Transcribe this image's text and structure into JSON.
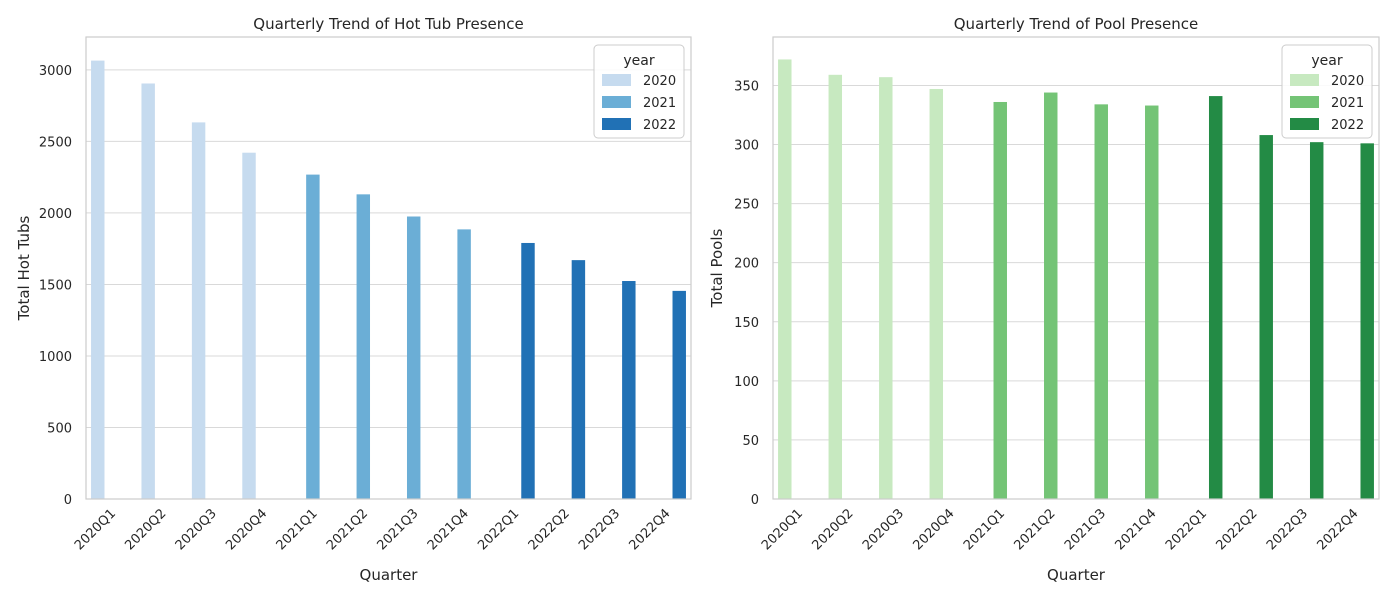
{
  "chart_data": [
    {
      "type": "bar",
      "title": "Quarterly Trend of Hot Tub Presence",
      "xlabel": "Quarter",
      "ylabel": "Total Hot Tubs",
      "categories": [
        "2020Q1",
        "2020Q2",
        "2020Q3",
        "2020Q4",
        "2021Q1",
        "2021Q2",
        "2021Q3",
        "2021Q4",
        "2022Q1",
        "2022Q2",
        "2022Q3",
        "2022Q4"
      ],
      "yticks": [
        0,
        500,
        1000,
        1500,
        2000,
        2500,
        3000
      ],
      "ylim": [
        0,
        3230
      ],
      "grid": "horizontal",
      "legend": {
        "title": "year",
        "placement": "top-right"
      },
      "series": [
        {
          "name": "2020",
          "color": "#c6dbef",
          "values": [
            3065,
            2905,
            2633,
            2421,
            null,
            null,
            null,
            null,
            null,
            null,
            null,
            null
          ]
        },
        {
          "name": "2021",
          "color": "#6baed6",
          "values": [
            null,
            null,
            null,
            null,
            2268,
            2130,
            1975,
            1885,
            null,
            null,
            null,
            null
          ]
        },
        {
          "name": "2022",
          "color": "#2171b5",
          "values": [
            null,
            null,
            null,
            null,
            null,
            null,
            null,
            null,
            1790,
            1670,
            1524,
            1455
          ]
        }
      ]
    },
    {
      "type": "bar",
      "title": "Quarterly Trend of Pool Presence",
      "xlabel": "Quarter",
      "ylabel": "Total Pools",
      "categories": [
        "2020Q1",
        "2020Q2",
        "2020Q3",
        "2020Q4",
        "2021Q1",
        "2021Q2",
        "2021Q3",
        "2021Q4",
        "2022Q1",
        "2022Q2",
        "2022Q3",
        "2022Q4"
      ],
      "yticks": [
        0,
        50,
        100,
        150,
        200,
        250,
        300,
        350
      ],
      "ylim": [
        0,
        391
      ],
      "grid": "horizontal",
      "legend": {
        "title": "year",
        "placement": "top-right"
      },
      "series": [
        {
          "name": "2020",
          "color": "#c7e9c0",
          "values": [
            372,
            359,
            357,
            347,
            null,
            null,
            null,
            null,
            null,
            null,
            null,
            null
          ]
        },
        {
          "name": "2021",
          "color": "#74c476",
          "values": [
            null,
            null,
            null,
            null,
            336,
            344,
            334,
            333,
            null,
            null,
            null,
            null
          ]
        },
        {
          "name": "2022",
          "color": "#238b45",
          "values": [
            null,
            null,
            null,
            null,
            null,
            null,
            null,
            null,
            341,
            308,
            302,
            301
          ]
        }
      ]
    }
  ]
}
